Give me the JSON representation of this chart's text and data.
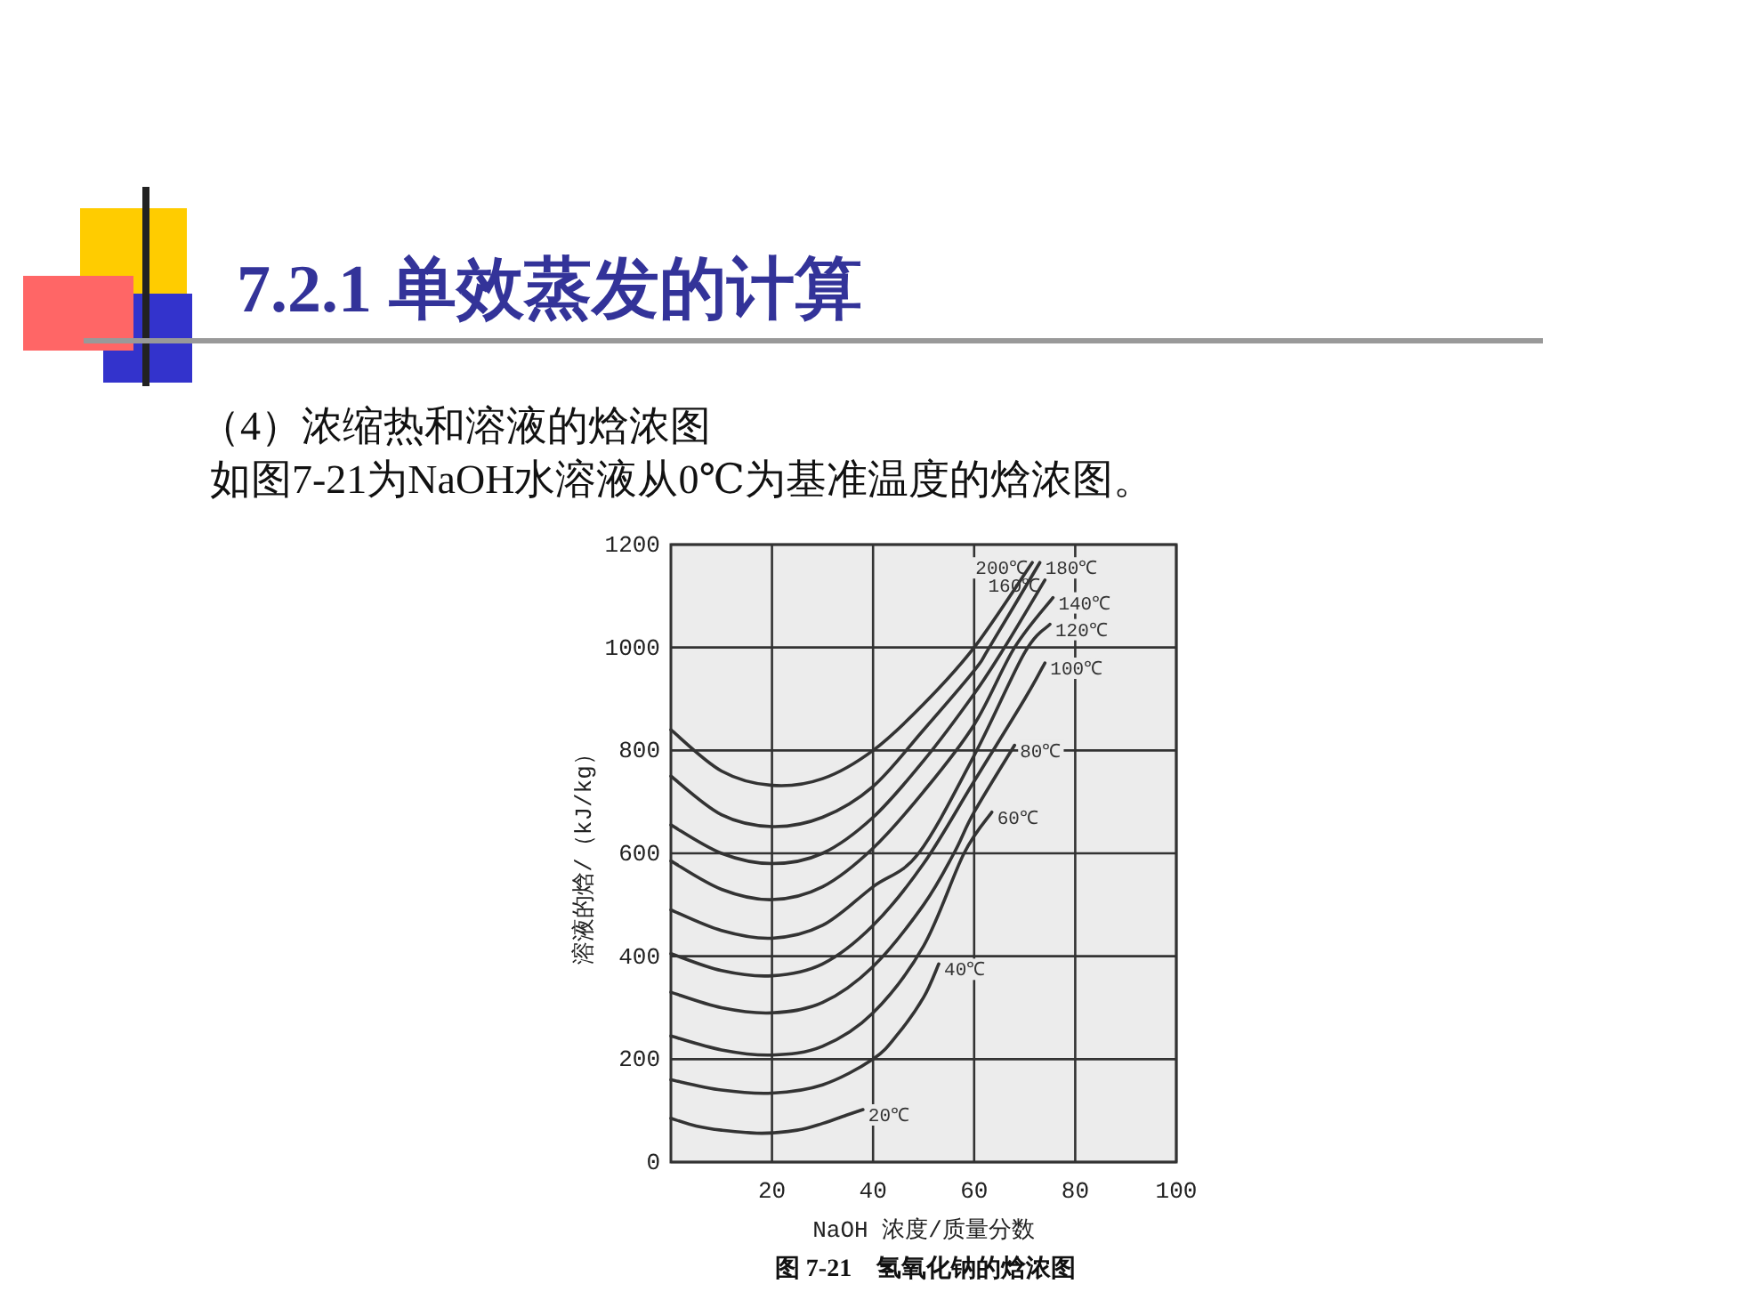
{
  "chart_data": {
    "type": "line",
    "title": "7.2.1 单效蒸发的计算",
    "subtitle": "（4）浓缩热和溶液的焓浓图",
    "annotations": [
      "如图7-21为NaOH水溶液从0℃为基准温度的焓浓图。",
      "图 7-21　氢氧化钠的焓浓图"
    ],
    "xlabel": "NaOH 浓度/质量分数",
    "ylabel": "溶液的焓/（kJ/kg）",
    "xlim": [
      0,
      100
    ],
    "xticks": [
      20,
      40,
      60,
      80,
      100
    ],
    "ylim": [
      0,
      1200
    ],
    "yticks": [
      0,
      200,
      400,
      600,
      800,
      1000,
      1200
    ],
    "grid": true,
    "marker": "none",
    "line_style": "solid",
    "series": [
      {
        "name": "20℃",
        "color": "#333333",
        "x": [
          0,
          5,
          10,
          18,
          25,
          30,
          35,
          38
        ],
        "values": [
          85,
          70,
          62,
          56,
          62,
          75,
          92,
          102
        ]
      },
      {
        "name": "40℃",
        "color": "#333333",
        "x": [
          0,
          10,
          20,
          30,
          40,
          45,
          50,
          53
        ],
        "values": [
          160,
          140,
          134,
          150,
          200,
          250,
          320,
          385
        ]
      },
      {
        "name": "60℃",
        "color": "#333333",
        "x": [
          0,
          10,
          20,
          30,
          40,
          50,
          58,
          63.5
        ],
        "values": [
          245,
          218,
          208,
          225,
          290,
          420,
          600,
          680
        ]
      },
      {
        "name": "80℃",
        "color": "#333333",
        "x": [
          0,
          10,
          20,
          30,
          40,
          50,
          56,
          60,
          68
        ],
        "values": [
          330,
          300,
          290,
          310,
          380,
          500,
          600,
          680,
          810
        ]
      },
      {
        "name": "100℃",
        "color": "#333333",
        "x": [
          0,
          10,
          20,
          30,
          40,
          50,
          60,
          70,
          74
        ],
        "values": [
          405,
          372,
          362,
          385,
          460,
          580,
          740,
          900,
          970
        ]
      },
      {
        "name": "120℃",
        "color": "#333333",
        "x": [
          0,
          10,
          20,
          30,
          40,
          49,
          60,
          70,
          75
        ],
        "values": [
          490,
          450,
          435,
          460,
          535,
          600,
          790,
          990,
          1045
        ]
      },
      {
        "name": "140℃",
        "color": "#333333",
        "x": [
          0,
          10,
          20,
          30,
          40,
          50,
          60,
          68,
          75.6
        ],
        "values": [
          585,
          530,
          510,
          535,
          610,
          720,
          850,
          1000,
          1097
        ]
      },
      {
        "name": "160℃",
        "color": "#333333",
        "x": [
          0,
          10,
          20,
          30,
          40,
          50,
          60,
          66,
          74
        ],
        "values": [
          655,
          600,
          580,
          600,
          670,
          780,
          910,
          1000,
          1131
        ]
      },
      {
        "name": "180℃",
        "color": "#333333",
        "x": [
          0,
          10,
          20,
          30,
          40,
          50,
          60,
          63,
          73
        ],
        "values": [
          750,
          675,
          652,
          670,
          730,
          840,
          955,
          1000,
          1165
        ]
      },
      {
        "name": "200℃",
        "color": "#333333",
        "x": [
          0,
          10,
          20,
          30,
          40,
          50,
          60,
          71.5
        ],
        "values": [
          840,
          760,
          732,
          745,
          800,
          890,
          1000,
          1165
        ]
      }
    ]
  }
}
